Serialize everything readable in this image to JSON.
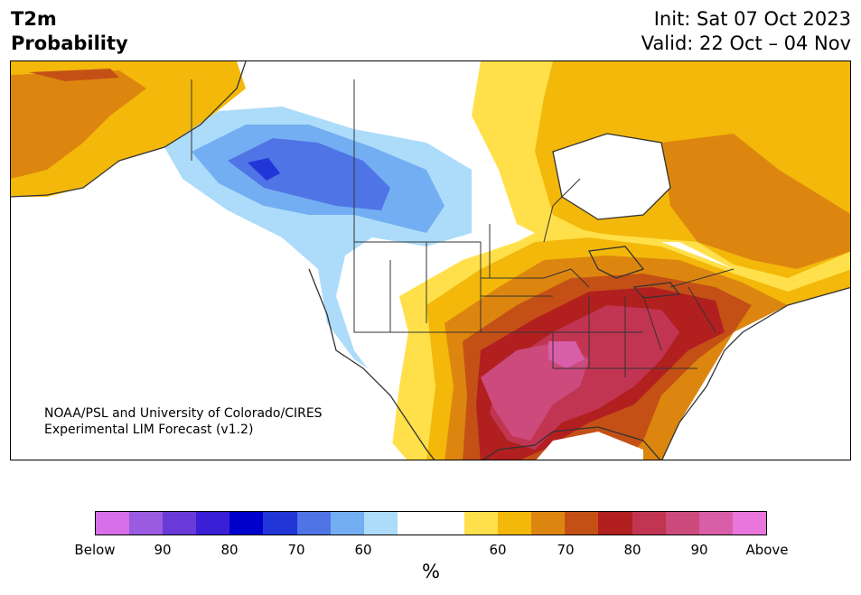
{
  "header": {
    "title_line1": "T2m",
    "title_line2": "Probability",
    "init": "Init: Sat 07 Oct 2023",
    "valid": "Valid: 22 Oct – 04 Nov"
  },
  "credit": {
    "line1": "NOAA/PSL and University of Colorado/CIRES",
    "line2": "Experimental LIM Forecast (v1.2)"
  },
  "colorbar": {
    "colors": [
      "#d66fe8",
      "#9b5be0",
      "#6a3ad9",
      "#3a1fd6",
      "#0000cc",
      "#2236d8",
      "#4f74e6",
      "#73aef2",
      "#acdcfa",
      "#ffffff",
      "#ffffff",
      "#ffe04a",
      "#f3b80a",
      "#dd860f",
      "#c45016",
      "#b1201f",
      "#c13553",
      "#cc4a7c",
      "#d95ea8",
      "#e876dc"
    ],
    "ticks": [
      "Below",
      "90",
      "80",
      "70",
      "60",
      "60",
      "70",
      "80",
      "90",
      "Above"
    ],
    "unit": "%"
  },
  "legend_categories": {
    "below_normal_colors": [
      "#d66fe8",
      "#9b5be0",
      "#6a3ad9",
      "#3a1fd6",
      "#0000cc",
      "#2236d8",
      "#4f74e6",
      "#73aef2",
      "#acdcfa"
    ],
    "above_normal_colors": [
      "#ffe04a",
      "#f3b80a",
      "#dd860f",
      "#c45016",
      "#b1201f",
      "#c13553",
      "#cc4a7c",
      "#d95ea8",
      "#e876dc"
    ]
  }
}
